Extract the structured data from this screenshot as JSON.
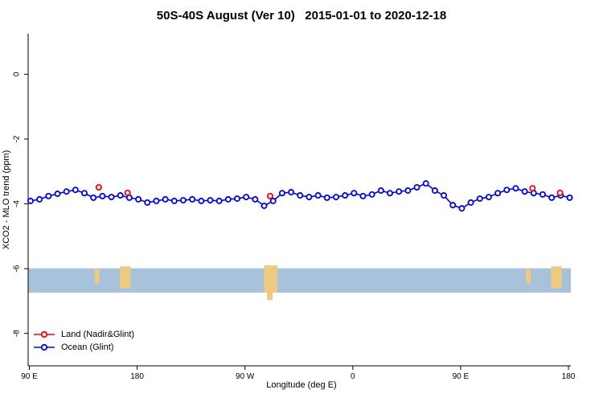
{
  "title": "50S-40S August (Ver 10)   2015-01-01 to 2020-12-18",
  "chart_data": {
    "type": "line",
    "title": "50S-40S August (Ver 10)   2015-01-01 to 2020-12-18",
    "xlabel": "Longitude (deg E)",
    "ylabel": "XCO2 - MLO trend (ppm)",
    "xlim": [
      89,
      542
    ],
    "ylim": [
      -9,
      1.25
    ],
    "grid": false,
    "x_ticks": [
      {
        "pos": 90,
        "label": "90 E"
      },
      {
        "pos": 180,
        "label": "180"
      },
      {
        "pos": 270,
        "label": "90 W"
      },
      {
        "pos": 360,
        "label": "0"
      },
      {
        "pos": 450,
        "label": "90 E"
      },
      {
        "pos": 540,
        "label": "180"
      }
    ],
    "y_ticks": [
      {
        "pos": 0,
        "label": "0"
      },
      {
        "pos": -2,
        "label": "-2"
      },
      {
        "pos": -4,
        "label": "-4"
      },
      {
        "pos": -6,
        "label": "-6"
      },
      {
        "pos": -8,
        "label": "-8"
      }
    ],
    "series": [
      {
        "name": "Ocean (Glint)",
        "color": "#0000ff",
        "style": "line+markers",
        "x": [
          91,
          98.5,
          106,
          113.5,
          121,
          128.5,
          136,
          143.5,
          151,
          158.5,
          166,
          173.5,
          181,
          188.5,
          196,
          203.5,
          211,
          218.5,
          226,
          233.5,
          241,
          248.5,
          256,
          263.5,
          271,
          278.5,
          286,
          293.5,
          301,
          308.5,
          316,
          323.5,
          331,
          338.5,
          346,
          353.5,
          361,
          368.5,
          376,
          383.5,
          391,
          398.5,
          406,
          413.5,
          421,
          428.5,
          436,
          443.5,
          451,
          458.5,
          466,
          473.5,
          481,
          488.5,
          496,
          503.5,
          511,
          518.5,
          526,
          533.5,
          541
        ],
        "y": [
          -3.91,
          -3.86,
          -3.76,
          -3.69,
          -3.62,
          -3.57,
          -3.67,
          -3.81,
          -3.76,
          -3.79,
          -3.74,
          -3.81,
          -3.86,
          -3.96,
          -3.91,
          -3.86,
          -3.91,
          -3.89,
          -3.86,
          -3.91,
          -3.89,
          -3.91,
          -3.86,
          -3.84,
          -3.79,
          -3.86,
          -4.06,
          -3.91,
          -3.67,
          -3.64,
          -3.74,
          -3.79,
          -3.74,
          -3.81,
          -3.79,
          -3.74,
          -3.67,
          -3.76,
          -3.71,
          -3.59,
          -3.67,
          -3.62,
          -3.59,
          -3.49,
          -3.37,
          -3.59,
          -3.74,
          -4.04,
          -4.14,
          -3.96,
          -3.84,
          -3.79,
          -3.67,
          -3.57,
          -3.52,
          -3.62,
          -3.67,
          -3.71,
          -3.81,
          -3.74,
          -3.81
        ]
      },
      {
        "name": "Land (Nadir&Glint)",
        "color": "#ff0000",
        "style": "markers",
        "x": [
          148,
          172,
          291,
          510,
          533
        ],
        "y": [
          -3.49,
          -3.66,
          -3.76,
          -3.52,
          -3.66
        ]
      }
    ],
    "map_band": {
      "ocean_color": "#a8c2dc",
      "land_color": "#eec97e",
      "y_top": -5.99,
      "y_bottom": -6.74,
      "land_patches": [
        {
          "x0": 144.5,
          "x1": 148.5,
          "y0": -6.02,
          "y1": -6.45
        },
        {
          "x0": 165.5,
          "x1": 174.5,
          "y0": -5.93,
          "y1": -6.6
        },
        {
          "x0": 286.0,
          "x1": 297.0,
          "y0": -5.9,
          "y1": -6.74
        },
        {
          "x0": 288.5,
          "x1": 293.0,
          "y0": -6.74,
          "y1": -6.97
        },
        {
          "x0": 504.5,
          "x1": 508.5,
          "y0": -6.02,
          "y1": -6.45
        },
        {
          "x0": 525.5,
          "x1": 534.5,
          "y0": -5.93,
          "y1": -6.6
        }
      ]
    },
    "legend_position": "bottom-left"
  },
  "legend": {
    "items": [
      {
        "label": "Land (Nadir&Glint)",
        "color": "#ff0000"
      },
      {
        "label": "Ocean (Glint)",
        "color": "#0000ff"
      }
    ]
  }
}
